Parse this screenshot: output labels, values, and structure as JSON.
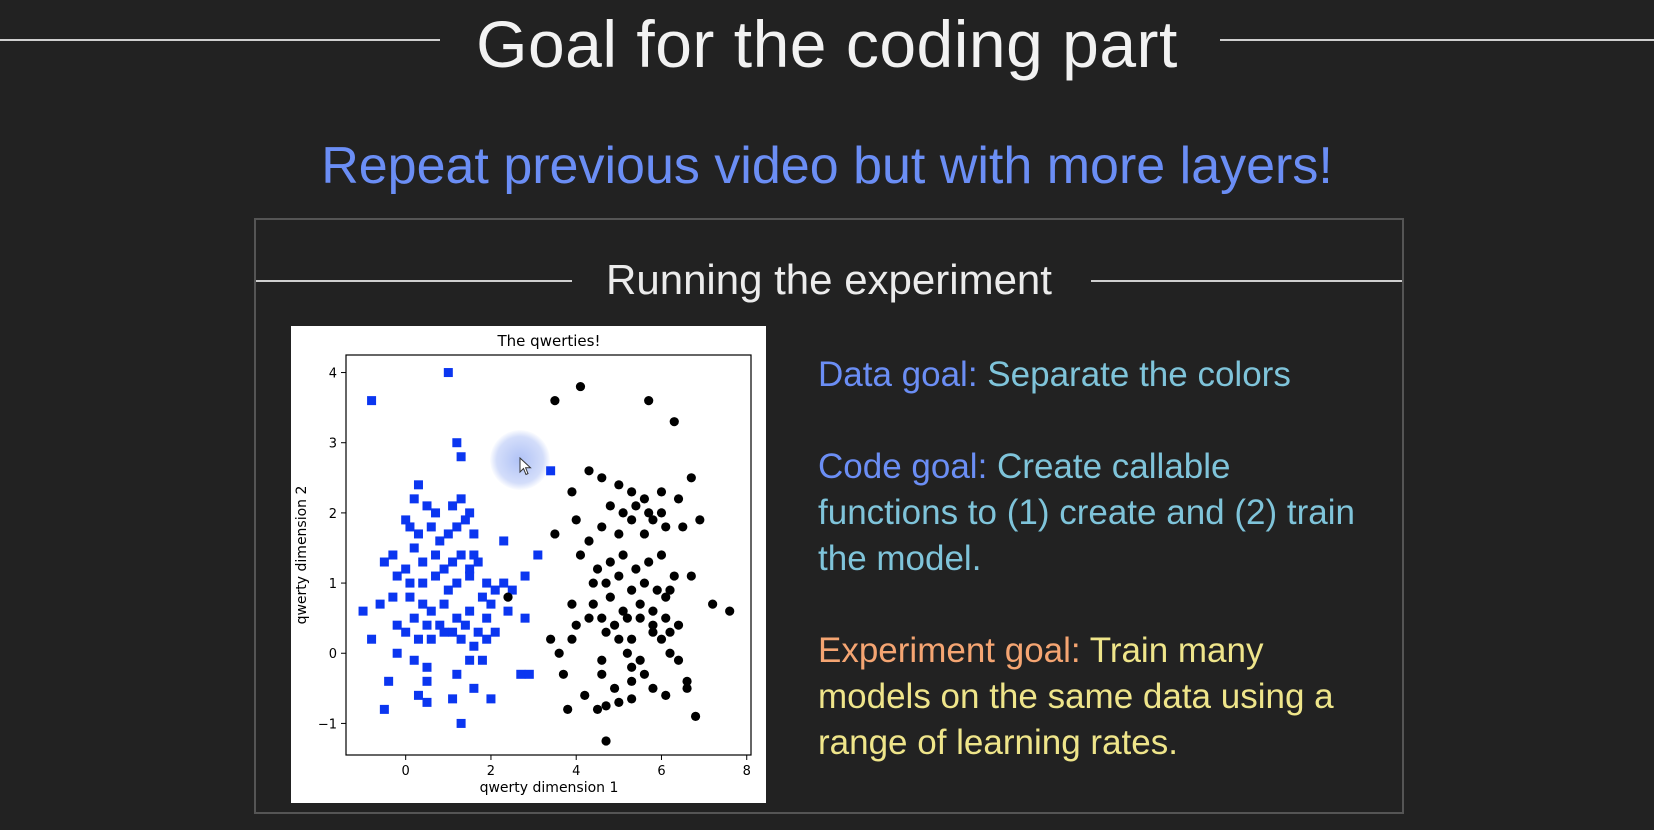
{
  "slide": {
    "title": "Goal for the coding part",
    "subtitle": "Repeat previous video but with more layers!",
    "panel_heading": "Running the experiment"
  },
  "goals": {
    "data_label": "Data goal:",
    "data_text": "Separate the colors",
    "code_label": "Code goal:",
    "code_text": "Create callable functions to (1) create and (2) train the model.",
    "experiment_label": "Experiment goal:",
    "experiment_text": "Train many models on the same data using a range of learning rates."
  },
  "colors": {
    "background": "#222222",
    "subtitle_blue": "#6b8ef5",
    "goal_cyan": "#7fc4da",
    "experiment_orange": "#f5a572",
    "experiment_yellow": "#efe58a",
    "series_blue": "#0b36f0",
    "series_black": "#000000"
  },
  "chart_data": {
    "type": "scatter",
    "title": "The qwerties!",
    "xlabel": "qwerty dimension 1",
    "ylabel": "qwerty dimension 2",
    "xlim": [
      -1.4,
      8.1
    ],
    "ylim": [
      -1.45,
      4.25
    ],
    "xticks": [
      0,
      2,
      4,
      6,
      8
    ],
    "yticks": [
      -1,
      0,
      1,
      2,
      3,
      4
    ],
    "grid": false,
    "legend": "none",
    "series": [
      {
        "marker": "square",
        "color": "#0b36f0",
        "points": [
          [
            -0.8,
            3.6
          ],
          [
            1.0,
            4.0
          ],
          [
            1.2,
            3.0
          ],
          [
            1.3,
            2.8
          ],
          [
            3.4,
            2.6
          ],
          [
            2.3,
            1.6
          ],
          [
            0.2,
            2.2
          ],
          [
            0.3,
            2.4
          ],
          [
            0.5,
            2.1
          ],
          [
            0.7,
            2.0
          ],
          [
            1.1,
            2.1
          ],
          [
            1.3,
            2.2
          ],
          [
            1.5,
            2.0
          ],
          [
            0.0,
            1.9
          ],
          [
            0.1,
            1.8
          ],
          [
            0.3,
            1.7
          ],
          [
            0.6,
            1.8
          ],
          [
            0.8,
            1.6
          ],
          [
            1.0,
            1.7
          ],
          [
            1.2,
            1.8
          ],
          [
            1.4,
            1.9
          ],
          [
            1.6,
            1.7
          ],
          [
            -0.5,
            1.3
          ],
          [
            -0.3,
            1.4
          ],
          [
            0.0,
            1.2
          ],
          [
            0.2,
            1.5
          ],
          [
            0.4,
            1.3
          ],
          [
            0.7,
            1.4
          ],
          [
            0.9,
            1.2
          ],
          [
            1.1,
            1.3
          ],
          [
            1.3,
            1.4
          ],
          [
            1.5,
            1.2
          ],
          [
            1.6,
            1.4
          ],
          [
            1.7,
            1.3
          ],
          [
            -0.2,
            1.1
          ],
          [
            0.1,
            1.0
          ],
          [
            0.4,
            1.0
          ],
          [
            0.7,
            1.1
          ],
          [
            1.0,
            0.9
          ],
          [
            1.2,
            1.0
          ],
          [
            1.5,
            1.1
          ],
          [
            1.9,
            1.0
          ],
          [
            2.1,
            0.9
          ],
          [
            2.3,
            1.0
          ],
          [
            2.5,
            0.9
          ],
          [
            2.8,
            1.1
          ],
          [
            3.1,
            1.4
          ],
          [
            -0.6,
            0.7
          ],
          [
            -0.3,
            0.8
          ],
          [
            0.1,
            0.8
          ],
          [
            0.4,
            0.7
          ],
          [
            0.6,
            0.6
          ],
          [
            0.9,
            0.7
          ],
          [
            1.2,
            0.5
          ],
          [
            1.5,
            0.6
          ],
          [
            1.8,
            0.8
          ],
          [
            2.0,
            0.7
          ],
          [
            -1.0,
            0.6
          ],
          [
            -0.2,
            0.4
          ],
          [
            0.2,
            0.5
          ],
          [
            0.5,
            0.4
          ],
          [
            0.8,
            0.4
          ],
          [
            1.1,
            0.3
          ],
          [
            1.4,
            0.4
          ],
          [
            1.7,
            0.3
          ],
          [
            1.9,
            0.5
          ],
          [
            2.1,
            0.3
          ],
          [
            2.4,
            0.6
          ],
          [
            2.8,
            0.5
          ],
          [
            -0.8,
            0.2
          ],
          [
            0.0,
            0.3
          ],
          [
            0.3,
            0.2
          ],
          [
            0.6,
            0.2
          ],
          [
            0.9,
            0.3
          ],
          [
            1.3,
            0.2
          ],
          [
            1.6,
            0.1
          ],
          [
            1.9,
            0.2
          ],
          [
            -0.2,
            0.0
          ],
          [
            0.2,
            -0.1
          ],
          [
            1.5,
            -0.1
          ],
          [
            1.8,
            -0.1
          ],
          [
            0.5,
            -0.2
          ],
          [
            1.2,
            -0.3
          ],
          [
            2.7,
            -0.3
          ],
          [
            2.9,
            -0.3
          ],
          [
            -0.4,
            -0.4
          ],
          [
            0.5,
            -0.4
          ],
          [
            1.6,
            -0.5
          ],
          [
            -0.5,
            -0.8
          ],
          [
            0.3,
            -0.6
          ],
          [
            0.5,
            -0.7
          ],
          [
            1.1,
            -0.65
          ],
          [
            2.0,
            -0.65
          ],
          [
            1.3,
            -1.0
          ]
        ]
      },
      {
        "marker": "circle",
        "color": "#000000",
        "points": [
          [
            3.5,
            3.6
          ],
          [
            4.1,
            3.8
          ],
          [
            5.7,
            3.6
          ],
          [
            6.3,
            3.3
          ],
          [
            4.3,
            2.6
          ],
          [
            3.9,
            2.3
          ],
          [
            4.6,
            2.5
          ],
          [
            5.0,
            2.4
          ],
          [
            5.3,
            2.3
          ],
          [
            5.6,
            2.2
          ],
          [
            6.0,
            2.3
          ],
          [
            6.7,
            2.5
          ],
          [
            4.8,
            2.1
          ],
          [
            5.1,
            2.0
          ],
          [
            5.4,
            2.1
          ],
          [
            5.7,
            2.0
          ],
          [
            6.0,
            2.0
          ],
          [
            6.4,
            2.2
          ],
          [
            6.9,
            1.9
          ],
          [
            3.5,
            1.7
          ],
          [
            4.0,
            1.9
          ],
          [
            4.3,
            1.6
          ],
          [
            4.6,
            1.8
          ],
          [
            5.0,
            1.7
          ],
          [
            5.3,
            1.9
          ],
          [
            5.6,
            1.7
          ],
          [
            5.8,
            1.9
          ],
          [
            6.1,
            1.8
          ],
          [
            6.5,
            1.8
          ],
          [
            4.1,
            1.4
          ],
          [
            4.5,
            1.2
          ],
          [
            4.8,
            1.3
          ],
          [
            5.1,
            1.4
          ],
          [
            5.4,
            1.2
          ],
          [
            5.7,
            1.3
          ],
          [
            6.0,
            1.4
          ],
          [
            6.3,
            1.1
          ],
          [
            6.7,
            1.1
          ],
          [
            4.4,
            1.0
          ],
          [
            4.7,
            1.0
          ],
          [
            5.0,
            1.1
          ],
          [
            5.3,
            0.9
          ],
          [
            5.6,
            1.0
          ],
          [
            5.9,
            0.9
          ],
          [
            6.2,
            0.9
          ],
          [
            2.4,
            0.8
          ],
          [
            3.9,
            0.7
          ],
          [
            4.4,
            0.7
          ],
          [
            4.8,
            0.8
          ],
          [
            5.1,
            0.6
          ],
          [
            5.5,
            0.7
          ],
          [
            5.8,
            0.6
          ],
          [
            6.1,
            0.8
          ],
          [
            7.2,
            0.7
          ],
          [
            7.6,
            0.6
          ],
          [
            4.0,
            0.4
          ],
          [
            4.3,
            0.5
          ],
          [
            4.6,
            0.5
          ],
          [
            4.9,
            0.4
          ],
          [
            5.2,
            0.5
          ],
          [
            5.5,
            0.5
          ],
          [
            5.8,
            0.4
          ],
          [
            6.1,
            0.5
          ],
          [
            6.4,
            0.4
          ],
          [
            3.4,
            0.2
          ],
          [
            3.9,
            0.2
          ],
          [
            4.7,
            0.3
          ],
          [
            5.0,
            0.2
          ],
          [
            5.3,
            0.2
          ],
          [
            5.8,
            0.3
          ],
          [
            6.0,
            0.2
          ],
          [
            6.2,
            0.3
          ],
          [
            3.6,
            0.0
          ],
          [
            4.6,
            -0.1
          ],
          [
            5.2,
            0.0
          ],
          [
            5.5,
            -0.1
          ],
          [
            6.2,
            0.0
          ],
          [
            6.4,
            -0.1
          ],
          [
            3.7,
            -0.3
          ],
          [
            4.6,
            -0.3
          ],
          [
            5.3,
            -0.2
          ],
          [
            5.6,
            -0.3
          ],
          [
            4.9,
            -0.5
          ],
          [
            5.3,
            -0.4
          ],
          [
            5.8,
            -0.5
          ],
          [
            6.6,
            -0.5
          ],
          [
            4.2,
            -0.6
          ],
          [
            5.0,
            -0.7
          ],
          [
            5.3,
            -0.65
          ],
          [
            6.1,
            -0.6
          ],
          [
            6.6,
            -0.4
          ],
          [
            3.8,
            -0.8
          ],
          [
            4.5,
            -0.8
          ],
          [
            4.7,
            -0.75
          ],
          [
            6.8,
            -0.9
          ],
          [
            4.7,
            -1.25
          ]
        ]
      }
    ]
  }
}
